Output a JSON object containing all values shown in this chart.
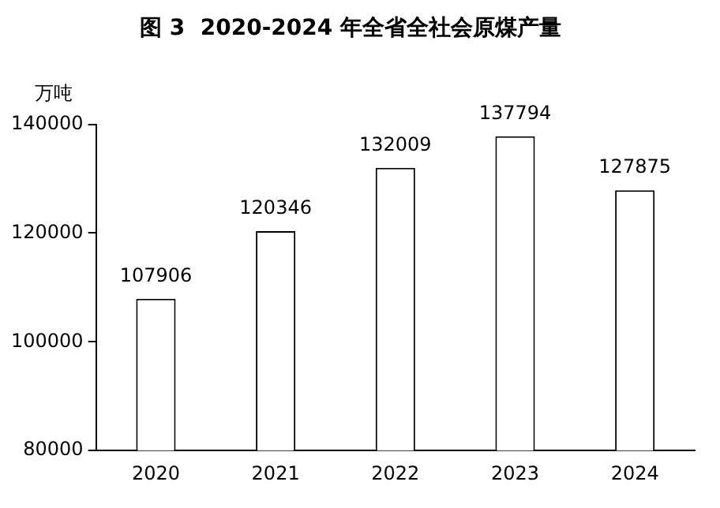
{
  "chart_data": {
    "type": "bar",
    "title": "图 3  2020-2024 年全省全社会原煤产量",
    "ylabel": "万吨",
    "categories": [
      "2020",
      "2021",
      "2022",
      "2023",
      "2024"
    ],
    "values": [
      107906,
      120346,
      132009,
      137794,
      127875
    ],
    "color": "#ffffff",
    "ylim": [
      80000,
      140000
    ],
    "yticks": [
      80000,
      100000,
      120000,
      140000
    ],
    "grid": false,
    "legend": false,
    "data_labels": true
  }
}
